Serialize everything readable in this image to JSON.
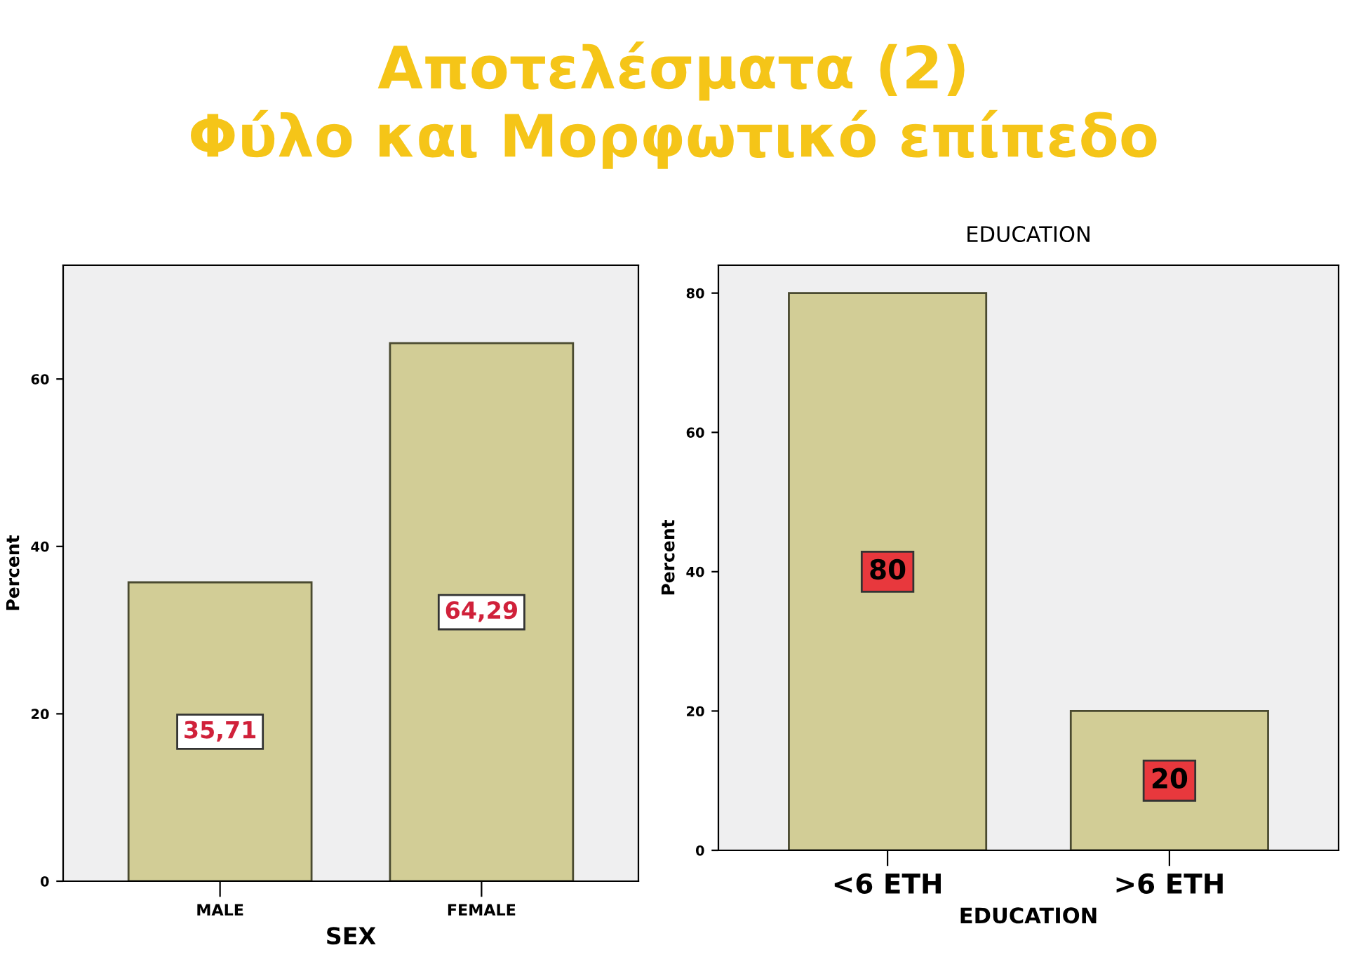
{
  "chart_data": [
    {
      "type": "bar",
      "title": "Αποτελέσματα (2)\nΦύλο και Μορφωτικό επίπεδο",
      "xlabel": "SEX",
      "ylabel": "Percent",
      "categories": [
        "MALE",
        "FEMALE"
      ],
      "values": [
        35.71,
        64.29
      ],
      "color": "#d2cd96",
      "value_labels": [
        "35,71",
        "64,29"
      ],
      "ylim": [
        0,
        73.6
      ],
      "yticks": [
        0,
        20,
        40,
        60
      ],
      "grid": false,
      "legend": false
    },
    {
      "type": "bar",
      "title": "EDUCATION",
      "xlabel": "EDUCATION",
      "ylabel": "Percent",
      "categories": [
        "<6 ETH",
        ">6 ETH"
      ],
      "values": [
        80,
        20
      ],
      "color": "#d2cd96",
      "data_labels": true,
      "ylim": [
        0,
        84
      ],
      "yticks": [
        0,
        20,
        40,
        60,
        80
      ],
      "grid": false,
      "legend": false
    }
  ]
}
